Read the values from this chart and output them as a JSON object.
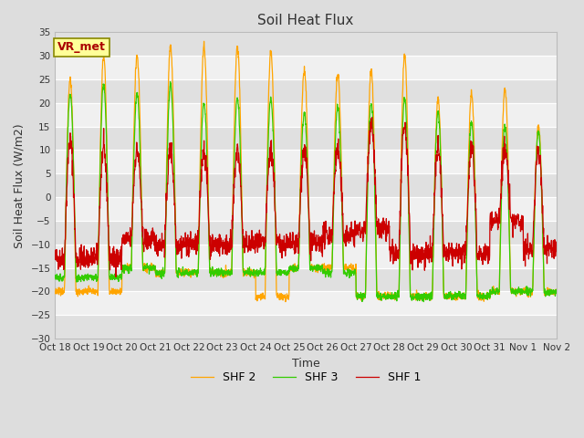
{
  "title": "Soil Heat Flux",
  "xlabel": "Time",
  "ylabel": "Soil Heat Flux (W/m2)",
  "ylim": [
    -30,
    35
  ],
  "yticks": [
    -30,
    -25,
    -20,
    -15,
    -10,
    -5,
    0,
    5,
    10,
    15,
    20,
    25,
    30,
    35
  ],
  "x_tick_labels": [
    "Oct 18",
    "Oct 19",
    "Oct 20",
    "Oct 21",
    "Oct 22",
    "Oct 23",
    "Oct 24",
    "Oct 25",
    "Oct 26",
    "Oct 27",
    "Oct 28",
    "Oct 29",
    "Oct 30",
    "Oct 31",
    "Nov 1",
    "Nov 2"
  ],
  "legend_labels": [
    "SHF 1",
    "SHF 2",
    "SHF 3"
  ],
  "line_colors": [
    "#cc0000",
    "#ffa500",
    "#33cc00"
  ],
  "annotation_text": "VR_met",
  "annotation_color": "#aa0000",
  "annotation_bg": "#ffff99",
  "annotation_border": "#888800",
  "bg_color": "#dddddd",
  "plot_bg": "#ffffff",
  "grid_color": "#cccccc",
  "band_color_dark": "#e0e0e0",
  "band_color_light": "#f0f0f0",
  "n_days": 15,
  "points_per_day": 144,
  "shf1_day_peaks": [
    12,
    10,
    10,
    10,
    10,
    10,
    10,
    10,
    10,
    16,
    15,
    10,
    11,
    10,
    10
  ],
  "shf1_night_vals": [
    -13,
    -13,
    -9,
    -10,
    -10,
    -10,
    -10,
    -10,
    -8,
    -7,
    -12,
    -12,
    -12,
    -5,
    -11
  ],
  "shf2_day_peaks": [
    25,
    30,
    30,
    32,
    32,
    32,
    31,
    27,
    26,
    27,
    30,
    21,
    22,
    23,
    15
  ],
  "shf2_night_vals": [
    -20,
    -20,
    -15,
    -16,
    -16,
    -16,
    -21,
    -15,
    -15,
    -21,
    -21,
    -21,
    -21,
    -20,
    -20
  ],
  "shf3_day_peaks": [
    22,
    24,
    22,
    24,
    20,
    21,
    21,
    18,
    19,
    20,
    21,
    18,
    16,
    15,
    14
  ],
  "shf3_night_vals": [
    -17,
    -17,
    -15,
    -16,
    -16,
    -16,
    -16,
    -15,
    -16,
    -21,
    -21,
    -21,
    -21,
    -20,
    -20
  ]
}
